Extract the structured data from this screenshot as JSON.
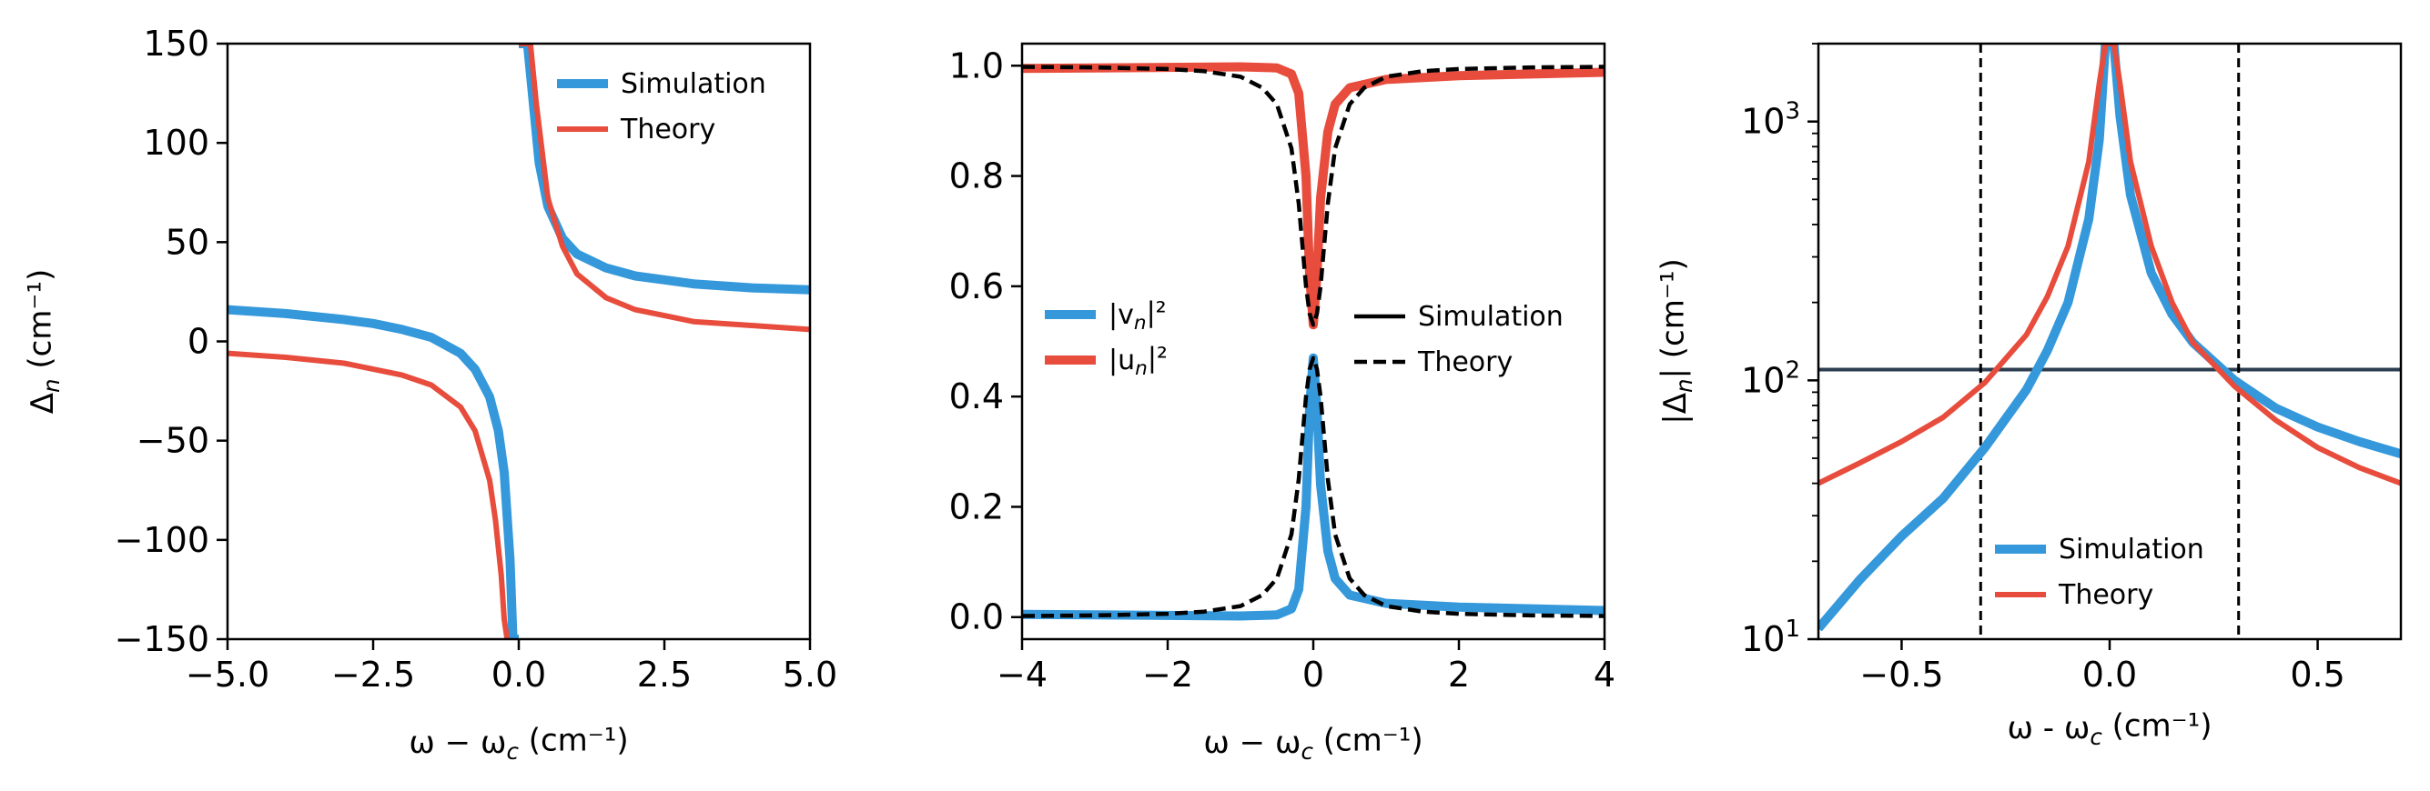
{
  "chart_data": [
    {
      "type": "line",
      "title": "",
      "xlabel": "ω − ω_c (cm⁻¹)",
      "ylabel": "Δ_n (cm⁻¹)",
      "xlim": [
        -5,
        5
      ],
      "ylim": [
        -150,
        150
      ],
      "yscale": "linear",
      "xticks": [
        -5.0,
        -2.5,
        0.0,
        2.5,
        5.0
      ],
      "xtick_labels": [
        "−5.0",
        "−2.5",
        "0.0",
        "2.5",
        "5.0"
      ],
      "yticks": [
        -150,
        -100,
        -50,
        0,
        50,
        100,
        150
      ],
      "ytick_labels": [
        "−150",
        "−100",
        "−50",
        "0",
        "50",
        "100",
        "150"
      ],
      "grid": false,
      "legend_position": "top-right",
      "series": [
        {
          "name": "Simulation",
          "color": "#3498db",
          "style": "solid",
          "width": "thick",
          "segments": [
            {
              "x": [
                -5.0,
                -4.0,
                -3.0,
                -2.5,
                -2.0,
                -1.5,
                -1.0,
                -0.75,
                -0.5,
                -0.35,
                -0.25,
                -0.15,
                -0.1,
                -0.06,
                -0.03,
                0.0
              ],
              "y": [
                16,
                14,
                11,
                9,
                6,
                2,
                -6,
                -14,
                -28,
                -45,
                -66,
                -110,
                -150,
                -150,
                -150,
                -150
              ]
            },
            {
              "x": [
                0.0,
                0.03,
                0.06,
                0.15,
                0.25,
                0.35,
                0.5,
                0.75,
                1.0,
                1.5,
                2.0,
                2.5,
                3.0,
                4.0,
                5.0
              ],
              "y": [
                150,
                150,
                150,
                150,
                120,
                90,
                68,
                52,
                44,
                37,
                33,
                31,
                29,
                27,
                26
              ]
            }
          ]
        },
        {
          "name": "Theory",
          "color": "#e74c3c",
          "style": "solid",
          "width": "normal",
          "segments": [
            {
              "x": [
                -5.0,
                -4.0,
                -3.0,
                -2.0,
                -1.5,
                -1.0,
                -0.75,
                -0.5,
                -0.4,
                -0.3,
                -0.25,
                -0.2
              ],
              "y": [
                -6,
                -8,
                -11,
                -17,
                -22,
                -33,
                -45,
                -70,
                -90,
                -118,
                -140,
                -150
              ]
            },
            {
              "x": [
                0.0,
                0.03,
                0.06,
                0.1,
                0.2,
                0.3,
                0.5,
                0.75,
                1.0,
                1.5,
                2.0,
                2.5,
                3.0,
                4.0,
                5.0
              ],
              "y": [
                150,
                150,
                150,
                150,
                150,
                120,
                72,
                48,
                34,
                22,
                16,
                13,
                10,
                8,
                6
              ]
            }
          ]
        }
      ]
    },
    {
      "type": "line",
      "title": "",
      "xlabel": "ω − ω_c (cm⁻¹)",
      "ylabel": "",
      "xlim": [
        -4,
        4
      ],
      "ylim": [
        -0.04,
        1.04
      ],
      "yscale": "linear",
      "xticks": [
        -4,
        -2,
        0,
        2,
        4
      ],
      "xtick_labels": [
        "−4",
        "−2",
        "0",
        "2",
        "4"
      ],
      "yticks": [
        0.0,
        0.2,
        0.4,
        0.6,
        0.8,
        1.0
      ],
      "ytick_labels": [
        "0.0",
        "0.2",
        "0.4",
        "0.6",
        "0.8",
        "1.0"
      ],
      "grid": false,
      "legend_color_position": "center-left",
      "legend_style_position": "center-right",
      "legend_color": [
        {
          "name": "|v_n|²",
          "color": "#3498db"
        },
        {
          "name": "|u_n|²",
          "color": "#e74c3c"
        }
      ],
      "legend_style": [
        {
          "name": "Simulation",
          "style": "solid"
        },
        {
          "name": "Theory",
          "style": "dashed"
        }
      ],
      "series": [
        {
          "name": "|v_n|² Simulation",
          "color": "#3498db",
          "style": "solid",
          "width": "thick",
          "x": [
            -4.0,
            -3.0,
            -2.0,
            -1.0,
            -0.5,
            -0.3,
            -0.2,
            -0.1,
            -0.05,
            0.0,
            0.05,
            0.1,
            0.2,
            0.3,
            0.5,
            1.0,
            2.0,
            3.0,
            4.0
          ],
          "y": [
            0.005,
            0.004,
            0.003,
            0.002,
            0.004,
            0.015,
            0.05,
            0.2,
            0.38,
            0.47,
            0.38,
            0.24,
            0.12,
            0.07,
            0.04,
            0.025,
            0.018,
            0.015,
            0.012
          ]
        },
        {
          "name": "|u_n|² Simulation",
          "color": "#e74c3c",
          "style": "solid",
          "width": "thick",
          "x": [
            -4.0,
            -3.0,
            -2.0,
            -1.0,
            -0.5,
            -0.3,
            -0.2,
            -0.1,
            -0.05,
            0.0,
            0.05,
            0.1,
            0.2,
            0.3,
            0.5,
            1.0,
            2.0,
            3.0,
            4.0
          ],
          "y": [
            0.995,
            0.996,
            0.997,
            0.998,
            0.996,
            0.985,
            0.95,
            0.8,
            0.62,
            0.53,
            0.62,
            0.76,
            0.88,
            0.93,
            0.96,
            0.975,
            0.982,
            0.985,
            0.988
          ]
        },
        {
          "name": "|v_n|² Theory",
          "color": "#000000",
          "style": "dashed",
          "width": "normal",
          "x": [
            -4.0,
            -3.0,
            -2.0,
            -1.5,
            -1.0,
            -0.7,
            -0.5,
            -0.3,
            -0.2,
            -0.1,
            -0.05,
            0.0,
            0.05,
            0.1,
            0.2,
            0.3,
            0.5,
            0.7,
            1.0,
            1.5,
            2.0,
            3.0,
            4.0
          ],
          "y": [
            0.002,
            0.003,
            0.006,
            0.01,
            0.02,
            0.04,
            0.07,
            0.15,
            0.25,
            0.4,
            0.45,
            0.47,
            0.45,
            0.4,
            0.25,
            0.15,
            0.07,
            0.04,
            0.02,
            0.01,
            0.006,
            0.003,
            0.002
          ]
        },
        {
          "name": "|u_n|² Theory",
          "color": "#000000",
          "style": "dashed",
          "width": "normal",
          "x": [
            -4.0,
            -3.0,
            -2.0,
            -1.5,
            -1.0,
            -0.7,
            -0.5,
            -0.3,
            -0.2,
            -0.1,
            -0.05,
            0.0,
            0.05,
            0.1,
            0.2,
            0.3,
            0.5,
            0.7,
            1.0,
            1.5,
            2.0,
            3.0,
            4.0
          ],
          "y": [
            0.998,
            0.997,
            0.994,
            0.99,
            0.98,
            0.96,
            0.93,
            0.85,
            0.75,
            0.6,
            0.55,
            0.53,
            0.55,
            0.6,
            0.75,
            0.85,
            0.93,
            0.96,
            0.98,
            0.99,
            0.994,
            0.997,
            0.998
          ]
        }
      ]
    },
    {
      "type": "line",
      "title": "",
      "xlabel": "ω - ω_c (cm⁻¹)",
      "ylabel": "|Δ_n| (cm⁻¹)",
      "xlim": [
        -0.7,
        0.7
      ],
      "ylim": [
        10,
        2000
      ],
      "yscale": "log",
      "xticks": [
        -0.5,
        0.0,
        0.5
      ],
      "xtick_labels": [
        "−0.5",
        "0.0",
        "0.5"
      ],
      "yticks": [
        10,
        100,
        1000
      ],
      "ytick_base": "10",
      "ytick_exponents": [
        "1",
        "2",
        "3"
      ],
      "grid": false,
      "legend_position": "bottom-center",
      "hline": {
        "y": 110,
        "color": "#2c3e50",
        "style": "solid"
      },
      "vlines": [
        {
          "x": -0.31,
          "color": "#000000",
          "style": "dashed"
        },
        {
          "x": 0.31,
          "color": "#000000",
          "style": "dashed"
        }
      ],
      "series": [
        {
          "name": "Simulation",
          "color": "#3498db",
          "style": "solid",
          "width": "thick",
          "x": [
            -0.7,
            -0.6,
            -0.5,
            -0.4,
            -0.3,
            -0.2,
            -0.15,
            -0.1,
            -0.05,
            -0.025,
            -0.01,
            0.0,
            0.01,
            0.025,
            0.05,
            0.1,
            0.15,
            0.2,
            0.3,
            0.4,
            0.5,
            0.6,
            0.7
          ],
          "y": [
            11,
            17,
            25,
            35,
            55,
            92,
            130,
            200,
            420,
            850,
            2000,
            2000,
            2000,
            1050,
            520,
            260,
            180,
            140,
            100,
            78,
            66,
            58,
            52
          ]
        },
        {
          "name": "Theory",
          "color": "#e74c3c",
          "style": "solid",
          "width": "normal",
          "x": [
            -0.7,
            -0.6,
            -0.5,
            -0.4,
            -0.3,
            -0.2,
            -0.15,
            -0.1,
            -0.05,
            -0.025,
            -0.01,
            0.0,
            0.01,
            0.025,
            0.05,
            0.1,
            0.15,
            0.2,
            0.3,
            0.4,
            0.5,
            0.6,
            0.7
          ],
          "y": [
            40,
            48,
            58,
            72,
            98,
            150,
            210,
            330,
            700,
            1400,
            2000,
            2000,
            2000,
            1400,
            700,
            330,
            200,
            140,
            95,
            70,
            55,
            46,
            40
          ]
        }
      ]
    }
  ]
}
